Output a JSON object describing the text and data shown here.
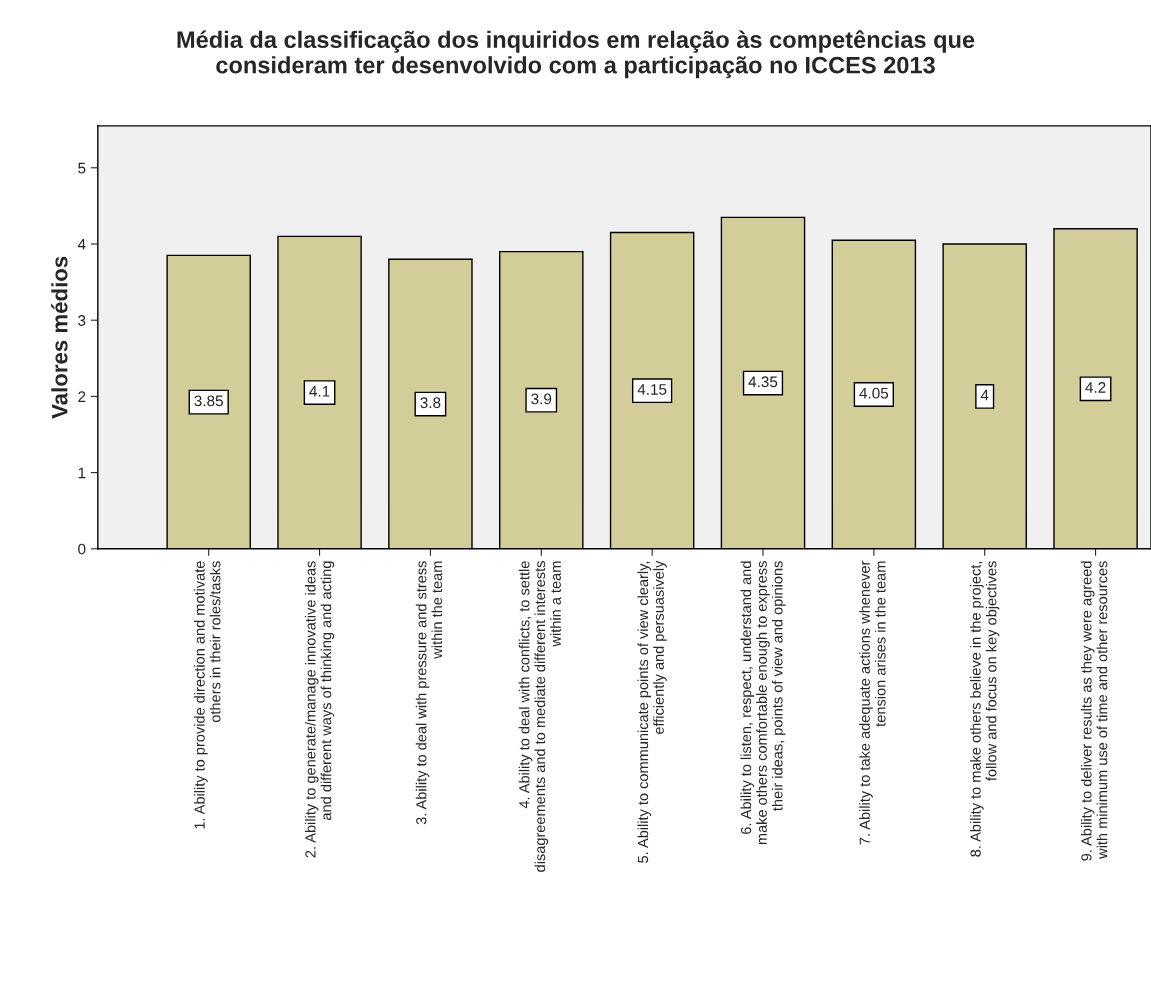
{
  "chart_data": {
    "type": "bar",
    "title": "Média da classificação dos inquiridos em relação às competências que\nconsideram ter desenvolvido com a participação no ICCES 2013",
    "ylabel": "Valores médios",
    "categories": [
      "1. Ability to provide direction and motivate\nothers in their roles/tasks",
      "2. Ability to generate/manage innovative ideas\nand different ways of thinking and acting",
      "3. Ability to deal with pressure and stress\nwithin the team",
      "4. Ability to deal with conflicts, to settle\ndisagreements and to mediate different interests\nwithin a team",
      "5. Ability to communicate points of view clearly,\nefficiently and persuasively",
      "6. Ability to listen, respect, understand and\nmake others comfortable enough to express\ntheir ideas, points of view and opinions",
      "7. Ability to take adequate actions whenever\ntension arises in the team",
      "8. Ability to make others believe in the project,\nfollow and focus on key objectives",
      "9. Ability to deliver results as they were agreed\nwith minimum use of time and other resources"
    ],
    "values": [
      3.85,
      4.1,
      3.8,
      3.9,
      4.15,
      4.35,
      4.05,
      4,
      4.2
    ],
    "color": "#d3ce99",
    "data_labels": true,
    "ylim": [
      0,
      5.55
    ],
    "yticks": [
      0,
      1,
      2,
      3,
      4,
      5
    ],
    "grid": false
  }
}
